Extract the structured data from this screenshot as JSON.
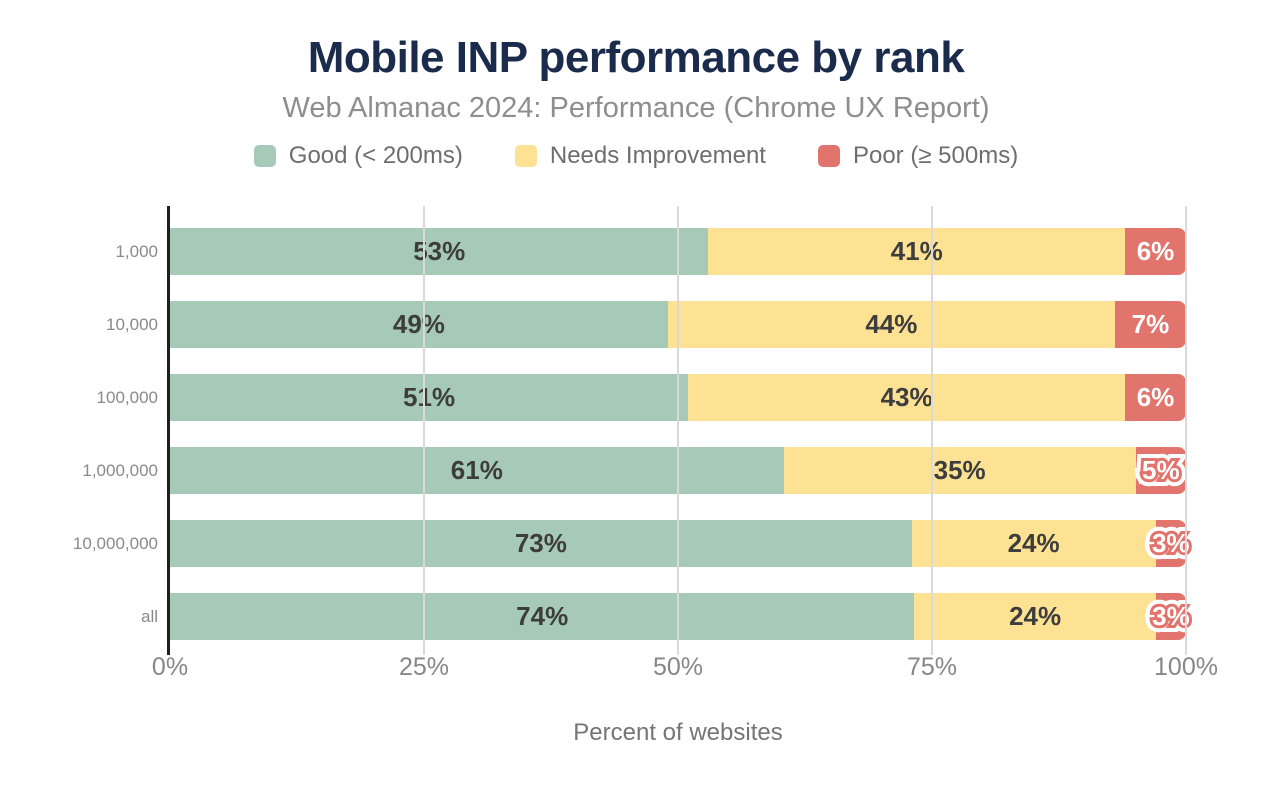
{
  "chart_data": {
    "type": "bar",
    "orientation": "horizontal-stacked",
    "title": "Mobile INP performance by rank",
    "subtitle": "Web Almanac 2024: Performance (Chrome UX Report)",
    "categories": [
      "1,000",
      "10,000",
      "100,000",
      "1,000,000",
      "10,000,000",
      "all"
    ],
    "series": [
      {
        "name": "Good (< 200ms)",
        "color": "#a6cab7",
        "label_color": "#3d3d3d",
        "values": [
          53,
          49,
          51,
          61,
          73,
          74
        ]
      },
      {
        "name": "Needs Improvement",
        "color": "#fde294",
        "label_color": "#3d3d3d",
        "values": [
          41,
          44,
          43,
          35,
          24,
          24
        ]
      },
      {
        "name": "Poor (≥ 500ms)",
        "color": "#e2746e",
        "label_color": "#ffffff",
        "values": [
          6,
          7,
          6,
          5,
          3,
          3
        ]
      }
    ],
    "value_suffix": "%",
    "xlabel": "Percent of websites",
    "x_ticks": [
      {
        "label": "0%",
        "pos": 0
      },
      {
        "label": "25%",
        "pos": 25
      },
      {
        "label": "50%",
        "pos": 50
      },
      {
        "label": "75%",
        "pos": 75
      },
      {
        "label": "100%",
        "pos": 100
      }
    ],
    "xlim": [
      0,
      100
    ],
    "gridline_positions": [
      25,
      50,
      75,
      100
    ],
    "grid": true,
    "legend_position": "top",
    "title_color": "#1b2b4c"
  }
}
